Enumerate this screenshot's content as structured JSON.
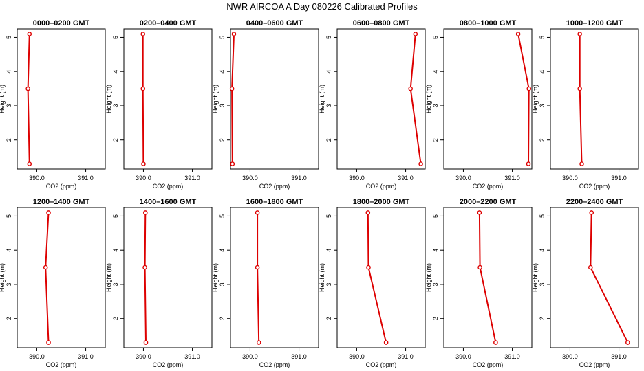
{
  "figure_title": "NWR AIRCOA A  Day 080226  Calibrated Profiles",
  "line_color": "#dd0000",
  "chart_data": [
    {
      "type": "line",
      "title": "0000–0200 GMT",
      "xlabel": "CO2 (ppm)",
      "ylabel": "Height (m)",
      "x_ticks": [
        "390.0",
        "391.0"
      ],
      "y_ticks": [
        "2",
        "3",
        "4",
        "5"
      ],
      "xlim": [
        389.6,
        391.4
      ],
      "ylim": [
        1.15,
        5.25
      ],
      "grid": false,
      "series": [
        {
          "x": [
            389.85,
            389.82,
            389.85
          ],
          "y": [
            5.1,
            3.5,
            1.3
          ]
        }
      ]
    },
    {
      "type": "line",
      "title": "0200–0400 GMT",
      "xlabel": "CO2 (ppm)",
      "ylabel": "Height (m)",
      "x_ticks": [
        "390.0",
        "391.0"
      ],
      "y_ticks": [
        "2",
        "3",
        "4",
        "5"
      ],
      "xlim": [
        389.6,
        391.4
      ],
      "ylim": [
        1.15,
        5.25
      ],
      "grid": false,
      "series": [
        {
          "x": [
            389.99,
            389.99,
            390.0
          ],
          "y": [
            5.1,
            3.5,
            1.3
          ]
        }
      ]
    },
    {
      "type": "line",
      "title": "0400–0600 GMT",
      "xlabel": "CO2 (ppm)",
      "ylabel": "Height (m)",
      "x_ticks": [
        "390.0",
        "391.0"
      ],
      "y_ticks": [
        "2",
        "3",
        "4",
        "5"
      ],
      "xlim": [
        389.6,
        391.4
      ],
      "ylim": [
        1.15,
        5.25
      ],
      "grid": false,
      "series": [
        {
          "x": [
            389.67,
            389.63,
            389.64
          ],
          "y": [
            5.1,
            3.5,
            1.3
          ]
        }
      ]
    },
    {
      "type": "line",
      "title": "0600–0800 GMT",
      "xlabel": "CO2 (ppm)",
      "ylabel": "Height (m)",
      "x_ticks": [
        "390.0",
        "391.0"
      ],
      "y_ticks": [
        "2",
        "3",
        "4",
        "5"
      ],
      "xlim": [
        389.6,
        391.4
      ],
      "ylim": [
        1.15,
        5.25
      ],
      "grid": false,
      "series": [
        {
          "x": [
            391.2,
            391.1,
            391.31
          ],
          "y": [
            5.1,
            3.5,
            1.3
          ]
        }
      ]
    },
    {
      "type": "line",
      "title": "0800–1000 GMT",
      "xlabel": "CO2 (ppm)",
      "ylabel": "Height (m)",
      "x_ticks": [
        "390.0",
        "391.0"
      ],
      "y_ticks": [
        "2",
        "3",
        "4",
        "5"
      ],
      "xlim": [
        389.6,
        391.4
      ],
      "ylim": [
        1.15,
        5.25
      ],
      "grid": false,
      "series": [
        {
          "x": [
            391.12,
            391.34,
            391.33
          ],
          "y": [
            5.1,
            3.5,
            1.3
          ]
        }
      ]
    },
    {
      "type": "line",
      "title": "1000–1200 GMT",
      "xlabel": "CO2 (ppm)",
      "ylabel": "Height (m)",
      "x_ticks": [
        "390.0",
        "391.0"
      ],
      "y_ticks": [
        "2",
        "3",
        "4",
        "5"
      ],
      "xlim": [
        389.6,
        391.4
      ],
      "ylim": [
        1.15,
        5.25
      ],
      "grid": false,
      "series": [
        {
          "x": [
            390.2,
            390.2,
            390.24
          ],
          "y": [
            5.1,
            3.5,
            1.3
          ]
        }
      ]
    },
    {
      "type": "line",
      "title": "1200–1400 GMT",
      "xlabel": "CO2 (ppm)",
      "ylabel": "Height (m)",
      "x_ticks": [
        "390.0",
        "391.0"
      ],
      "y_ticks": [
        "2",
        "3",
        "4",
        "5"
      ],
      "xlim": [
        389.6,
        391.4
      ],
      "ylim": [
        1.15,
        5.25
      ],
      "grid": false,
      "series": [
        {
          "x": [
            390.24,
            390.18,
            390.24
          ],
          "y": [
            5.1,
            3.5,
            1.3
          ]
        }
      ]
    },
    {
      "type": "line",
      "title": "1400–1600 GMT",
      "xlabel": "CO2 (ppm)",
      "ylabel": "Height (m)",
      "x_ticks": [
        "390.0",
        "391.0"
      ],
      "y_ticks": [
        "2",
        "3",
        "4",
        "5"
      ],
      "xlim": [
        389.6,
        391.4
      ],
      "ylim": [
        1.15,
        5.25
      ],
      "grid": false,
      "series": [
        {
          "x": [
            390.04,
            390.03,
            390.05
          ],
          "y": [
            5.1,
            3.5,
            1.3
          ]
        }
      ]
    },
    {
      "type": "line",
      "title": "1600–1800 GMT",
      "xlabel": "CO2 (ppm)",
      "ylabel": "Height (m)",
      "x_ticks": [
        "390.0",
        "391.0"
      ],
      "y_ticks": [
        "2",
        "3",
        "4",
        "5"
      ],
      "xlim": [
        389.6,
        391.4
      ],
      "ylim": [
        1.15,
        5.25
      ],
      "grid": false,
      "series": [
        {
          "x": [
            390.15,
            390.15,
            390.18
          ],
          "y": [
            5.1,
            3.5,
            1.3
          ]
        }
      ]
    },
    {
      "type": "line",
      "title": "1800–2000 GMT",
      "xlabel": "CO2 (ppm)",
      "ylabel": "Height (m)",
      "x_ticks": [
        "390.0",
        "391.0"
      ],
      "y_ticks": [
        "2",
        "3",
        "4",
        "5"
      ],
      "xlim": [
        389.6,
        391.4
      ],
      "ylim": [
        1.15,
        5.25
      ],
      "grid": false,
      "series": [
        {
          "x": [
            390.23,
            390.24,
            390.6
          ],
          "y": [
            5.1,
            3.5,
            1.3
          ]
        }
      ]
    },
    {
      "type": "line",
      "title": "2000–2200 GMT",
      "xlabel": "CO2 (ppm)",
      "ylabel": "Height (m)",
      "x_ticks": [
        "390.0",
        "391.0"
      ],
      "y_ticks": [
        "2",
        "3",
        "4",
        "5"
      ],
      "xlim": [
        389.6,
        391.4
      ],
      "ylim": [
        1.15,
        5.25
      ],
      "grid": false,
      "series": [
        {
          "x": [
            390.33,
            390.34,
            390.66
          ],
          "y": [
            5.1,
            3.5,
            1.3
          ]
        }
      ]
    },
    {
      "type": "line",
      "title": "2200–2400 GMT",
      "xlabel": "CO2 (ppm)",
      "ylabel": "Height (m)",
      "x_ticks": [
        "390.0",
        "391.0"
      ],
      "y_ticks": [
        "2",
        "3",
        "4",
        "5"
      ],
      "xlim": [
        389.6,
        391.4
      ],
      "ylim": [
        1.15,
        5.25
      ],
      "grid": false,
      "series": [
        {
          "x": [
            390.44,
            390.42,
            391.18
          ],
          "y": [
            5.1,
            3.5,
            1.3
          ]
        }
      ]
    }
  ]
}
